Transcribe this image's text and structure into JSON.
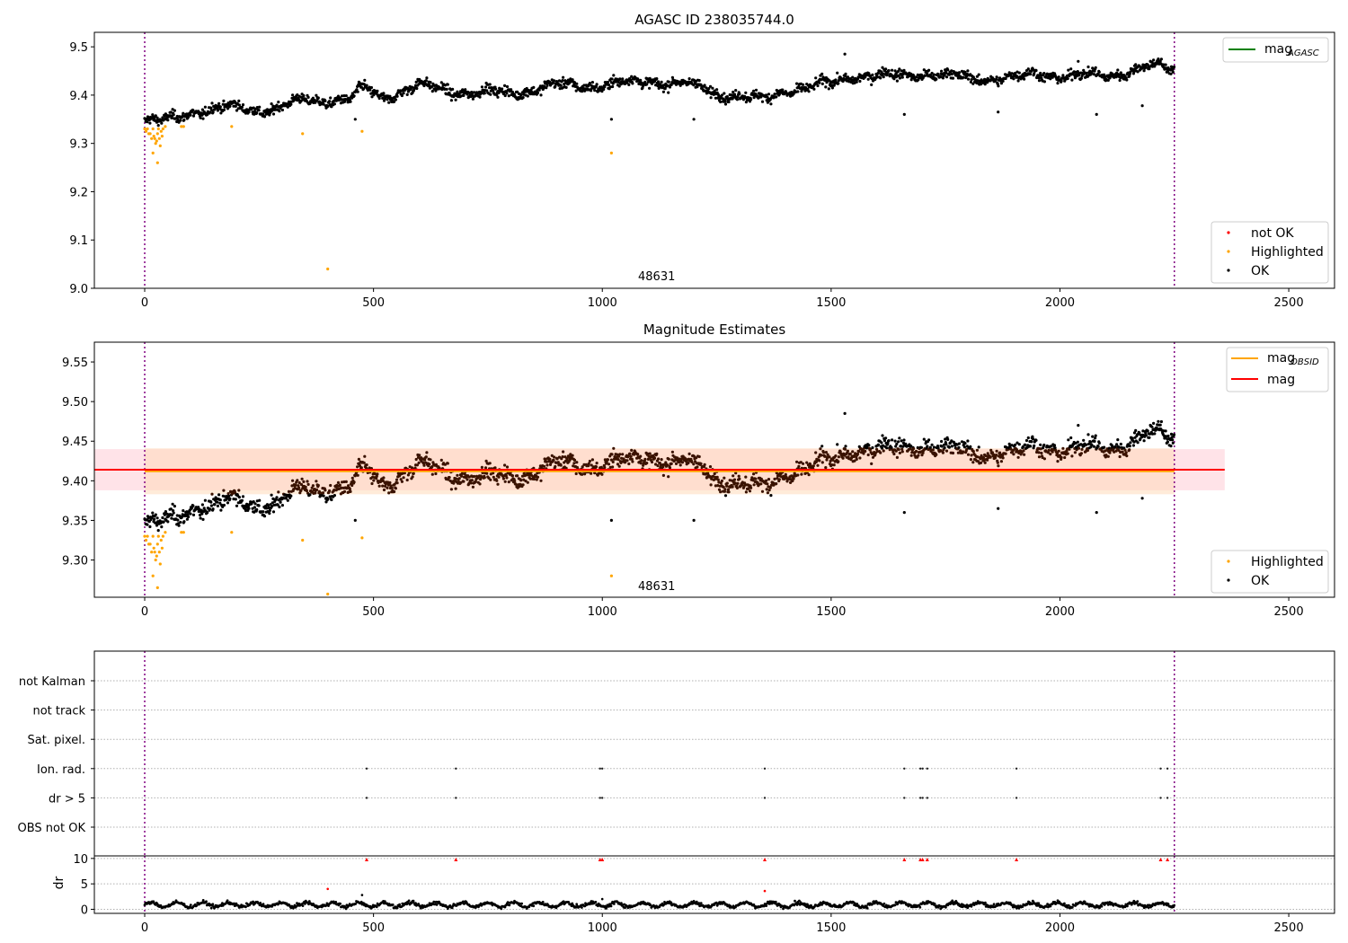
{
  "figure": {
    "title": "AGASC ID 238035744.0"
  },
  "colors": {
    "ok": "#000000",
    "highlighted": "#ffa500",
    "not_ok": "#ff0000",
    "agasc_line": "#008000",
    "obsid_line": "#ffa500",
    "mag_line": "#ff0000",
    "boundary": "#800080",
    "band_mag": "#ffc0cb",
    "band_obsid": "#ffdab9",
    "grid": "#b0b0b0"
  },
  "chart_data": [
    {
      "id": "agasc",
      "type": "scatter",
      "title": "",
      "xlim": [
        -110,
        2600
      ],
      "ylim": [
        9.0,
        9.53
      ],
      "xticks": [
        0,
        500,
        1000,
        1500,
        2000,
        2500
      ],
      "yticks": [
        9.0,
        9.1,
        9.2,
        9.3,
        9.4,
        9.5
      ],
      "ytick_labels": [
        "9.0",
        "9.1",
        "9.2",
        "9.3",
        "9.4",
        "9.5"
      ],
      "vlines": [
        0,
        2250
      ],
      "annotation": {
        "text": "48631",
        "x": 1080,
        "y": 9.02
      },
      "line_legend": [
        {
          "label": "mag",
          "subscript": "AGASC",
          "color": "#008000"
        }
      ],
      "marker_legend": [
        {
          "label": "not OK",
          "color": "#ff0000"
        },
        {
          "label": "Highlighted",
          "color": "#ffa500"
        },
        {
          "label": "OK",
          "color": "#000000"
        }
      ],
      "trend": {
        "x_range": [
          0,
          2250
        ],
        "anchors": [
          [
            0,
            9.345
          ],
          [
            40,
            9.345
          ],
          [
            100,
            9.365
          ],
          [
            200,
            9.375
          ],
          [
            250,
            9.37
          ],
          [
            280,
            9.37
          ],
          [
            350,
            9.39
          ],
          [
            450,
            9.39
          ],
          [
            480,
            9.415
          ],
          [
            520,
            9.395
          ],
          [
            600,
            9.42
          ],
          [
            700,
            9.405
          ],
          [
            800,
            9.405
          ],
          [
            900,
            9.42
          ],
          [
            1000,
            9.42
          ],
          [
            1100,
            9.43
          ],
          [
            1200,
            9.42
          ],
          [
            1250,
            9.405
          ],
          [
            1350,
            9.39
          ],
          [
            1400,
            9.41
          ],
          [
            1450,
            9.415
          ],
          [
            1500,
            9.425
          ],
          [
            1550,
            9.44
          ],
          [
            1650,
            9.44
          ],
          [
            1700,
            9.445
          ],
          [
            1800,
            9.435
          ],
          [
            1900,
            9.435
          ],
          [
            1950,
            9.445
          ],
          [
            2000,
            9.44
          ],
          [
            2100,
            9.44
          ],
          [
            2200,
            9.46
          ],
          [
            2250,
            9.455
          ]
        ],
        "scatter": 0.013,
        "outliers": [
          [
            460,
            9.35
          ],
          [
            1020,
            9.35
          ],
          [
            1200,
            9.35
          ],
          [
            1660,
            9.36
          ],
          [
            1865,
            9.365
          ],
          [
            2080,
            9.36
          ],
          [
            2180,
            9.378
          ],
          [
            1530,
            9.485
          ],
          [
            2040,
            9.47
          ]
        ]
      },
      "highlighted_points": [
        [
          0,
          9.33
        ],
        [
          3,
          9.325
        ],
        [
          6,
          9.33
        ],
        [
          9,
          9.32
        ],
        [
          12,
          9.32
        ],
        [
          15,
          9.31
        ],
        [
          18,
          9.33
        ],
        [
          20,
          9.315
        ],
        [
          22,
          9.31
        ],
        [
          24,
          9.3
        ],
        [
          26,
          9.305
        ],
        [
          28,
          9.32
        ],
        [
          30,
          9.33
        ],
        [
          32,
          9.31
        ],
        [
          34,
          9.295
        ],
        [
          36,
          9.325
        ],
        [
          38,
          9.315
        ],
        [
          40,
          9.33
        ],
        [
          18,
          9.28
        ],
        [
          28,
          9.26
        ],
        [
          45,
          9.335
        ],
        [
          80,
          9.335
        ],
        [
          85,
          9.335
        ],
        [
          190,
          9.335
        ],
        [
          345,
          9.32
        ],
        [
          400,
          9.04
        ],
        [
          475,
          9.325
        ],
        [
          1020,
          9.28
        ]
      ],
      "not_ok_points": []
    },
    {
      "id": "estimates",
      "type": "scatter",
      "title": "Magnitude Estimates",
      "xlim": [
        -110,
        2600
      ],
      "ylim": [
        9.253,
        9.575
      ],
      "xticks": [
        0,
        500,
        1000,
        1500,
        2000,
        2500
      ],
      "yticks": [
        9.3,
        9.35,
        9.4,
        9.45,
        9.5,
        9.55
      ],
      "ytick_labels": [
        "9.30",
        "9.35",
        "9.40",
        "9.45",
        "9.50",
        "9.55"
      ],
      "vlines": [
        0,
        2250
      ],
      "annotation": {
        "text": "48631",
        "x": 1080,
        "y": 9.27
      },
      "mag": 9.414,
      "mag_band": [
        9.388,
        9.44
      ],
      "mag_band_x": [
        -110,
        2360
      ],
      "mag_obsid": 9.412,
      "mag_obsid_band": [
        9.383,
        9.441
      ],
      "mag_obsid_band_x": [
        0,
        2250
      ],
      "line_legend": [
        {
          "label": "mag",
          "subscript": "OBSID",
          "color": "#ffa500"
        },
        {
          "label": "mag",
          "subscript": "",
          "color": "#ff0000"
        }
      ],
      "marker_legend": [
        {
          "label": "Highlighted",
          "color": "#ffa500"
        },
        {
          "label": "OK",
          "color": "#000000"
        }
      ],
      "highlighted_points": [
        [
          0,
          9.33
        ],
        [
          3,
          9.325
        ],
        [
          6,
          9.33
        ],
        [
          9,
          9.32
        ],
        [
          12,
          9.32
        ],
        [
          15,
          9.31
        ],
        [
          18,
          9.33
        ],
        [
          20,
          9.315
        ],
        [
          22,
          9.31
        ],
        [
          24,
          9.3
        ],
        [
          26,
          9.305
        ],
        [
          28,
          9.32
        ],
        [
          30,
          9.33
        ],
        [
          32,
          9.31
        ],
        [
          34,
          9.295
        ],
        [
          36,
          9.325
        ],
        [
          38,
          9.315
        ],
        [
          40,
          9.33
        ],
        [
          18,
          9.28
        ],
        [
          28,
          9.265
        ],
        [
          45,
          9.335
        ],
        [
          80,
          9.335
        ],
        [
          85,
          9.335
        ],
        [
          190,
          9.335
        ],
        [
          345,
          9.325
        ],
        [
          400,
          9.257
        ],
        [
          475,
          9.328
        ],
        [
          1020,
          9.28
        ]
      ]
    },
    {
      "id": "flags",
      "type": "scatter",
      "title": "",
      "xlim": [
        -110,
        2600
      ],
      "categories": [
        "not Kalman",
        "not track",
        "Sat. pixel.",
        "Ion. rad.",
        "dr > 5",
        "OBS not OK"
      ],
      "flag_points": {
        "Ion. rad.": [
          485,
          680,
          995,
          1000,
          1355,
          1660,
          1695,
          1700,
          1710,
          1905,
          2220,
          2235
        ],
        "dr > 5": [
          485,
          680,
          995,
          1000,
          1355,
          1660,
          1695,
          1700,
          1710,
          1905,
          2220,
          2235
        ]
      },
      "vlines": [
        0,
        2250
      ]
    },
    {
      "id": "dr",
      "type": "scatter",
      "ylabel": "dr",
      "xlim": [
        -110,
        2600
      ],
      "ylim": [
        -0.8,
        10.5
      ],
      "xticks": [
        0,
        500,
        1000,
        1500,
        2000,
        2500
      ],
      "yticks": [
        0,
        5,
        10
      ],
      "ytick_labels": [
        "0",
        "5",
        "10"
      ],
      "vlines": [
        0,
        2250
      ],
      "dr_scatter": {
        "base": 0.9,
        "spread": 0.7
      },
      "dr_outliers": [
        [
          400,
          4.0
        ],
        [
          1355,
          3.6
        ],
        [
          475,
          2.8
        ],
        [
          1000,
          2.0
        ]
      ],
      "dr_capped": [
        485,
        680,
        995,
        1000,
        1355,
        1660,
        1695,
        1700,
        1710,
        1905,
        2220,
        2235
      ],
      "dr_cap": 9.8
    }
  ]
}
